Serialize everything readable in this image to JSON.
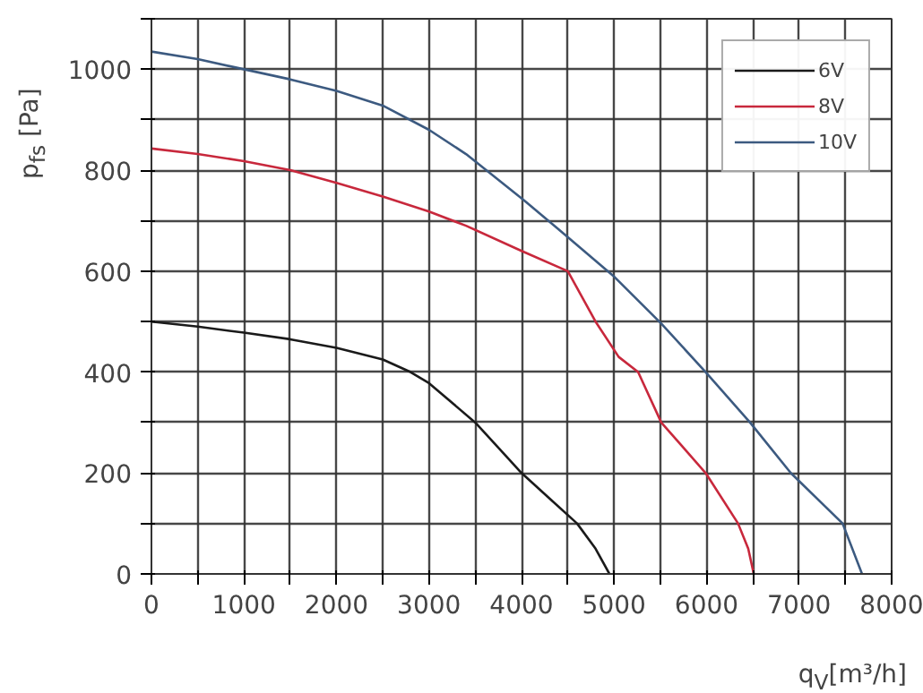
{
  "chart_data": {
    "type": "line",
    "xlabel": "q$_{V}$[m³/h]",
    "ylabel": "p$_{fs}$ [Pa]",
    "xlim": [
      0,
      8000
    ],
    "ylim": [
      0,
      1100
    ],
    "xticks": [
      0,
      {
        "value": 500,
        "label": null
      },
      1000,
      {
        "value": 1500,
        "label": null
      },
      2000,
      {
        "value": 2500,
        "label": null
      },
      3000,
      {
        "value": 3500,
        "label": null
      },
      4000,
      {
        "value": 4500,
        "label": null
      },
      5000,
      {
        "value": 5500,
        "label": null
      },
      6000,
      {
        "value": 6500,
        "label": null
      },
      7000,
      {
        "value": 7500,
        "label": null
      },
      8000
    ],
    "yticks": [
      0,
      {
        "value": 100,
        "label": null
      },
      200,
      {
        "value": 300,
        "label": null
      },
      400,
      {
        "value": 500,
        "label": null
      },
      600,
      {
        "value": 700,
        "label": null
      },
      800,
      {
        "value": 900,
        "label": null
      },
      1000,
      {
        "value": 1100,
        "label": null
      }
    ],
    "grid": true,
    "legend": "top right",
    "marker": "none",
    "line_style": "solid",
    "series": [
      {
        "name": "6V",
        "color": "#1a1a1a",
        "x": [
          0,
          500,
          1000,
          1500,
          2000,
          2500,
          2800,
          3000,
          3500,
          4000,
          4300,
          4600,
          4800,
          4950
        ],
        "values": [
          500,
          490,
          478,
          465,
          448,
          425,
          400,
          378,
          300,
          200,
          150,
          100,
          50,
          0
        ]
      },
      {
        "name": "8V",
        "color": "#c8283c",
        "x": [
          0,
          500,
          1000,
          1500,
          2000,
          2500,
          3000,
          3400,
          4000,
          4500,
          4800,
          5050,
          5260,
          5510,
          5990,
          6340,
          6450,
          6510
        ],
        "values": [
          843,
          832,
          818,
          800,
          775,
          748,
          718,
          690,
          640,
          600,
          500,
          430,
          400,
          300,
          200,
          100,
          50,
          0
        ]
      },
      {
        "name": "10V",
        "color": "#3c5a80",
        "x": [
          0,
          500,
          1000,
          1500,
          2000,
          2500,
          3000,
          3400,
          4030,
          4490,
          4990,
          5510,
          5990,
          6470,
          6910,
          7470,
          7680
        ],
        "values": [
          1035,
          1020,
          1000,
          980,
          957,
          928,
          880,
          832,
          740,
          669,
          591,
          496,
          400,
          300,
          200,
          100,
          0
        ]
      }
    ]
  }
}
